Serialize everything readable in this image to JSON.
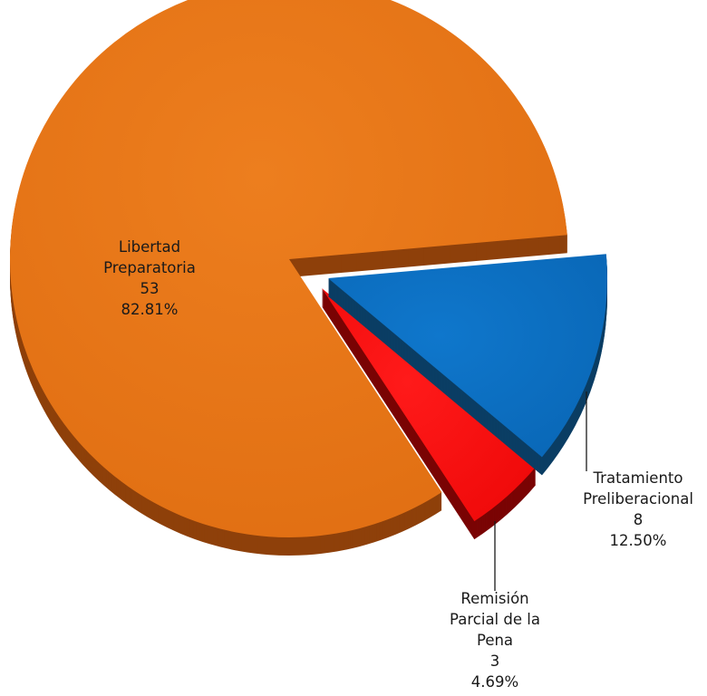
{
  "chart_data": {
    "type": "pie",
    "style": "3d-exploded",
    "slices": [
      {
        "label_lines": [
          "Libertad",
          "Preparatoria"
        ],
        "value": 53,
        "percent": "82.81%",
        "color": "#E37215",
        "side_color": "#8E400A"
      },
      {
        "label_lines": [
          "Tratamiento",
          "Preliberacional"
        ],
        "value": 8,
        "percent": "12.50%",
        "color": "#0A6DBF",
        "side_color": "#0B3E64"
      },
      {
        "label_lines": [
          "Remisión",
          "Parcial de la",
          "Pena"
        ],
        "value": 3,
        "percent": "4.69%",
        "color": "#FA0E0E",
        "side_color": "#7A0404"
      }
    ]
  }
}
